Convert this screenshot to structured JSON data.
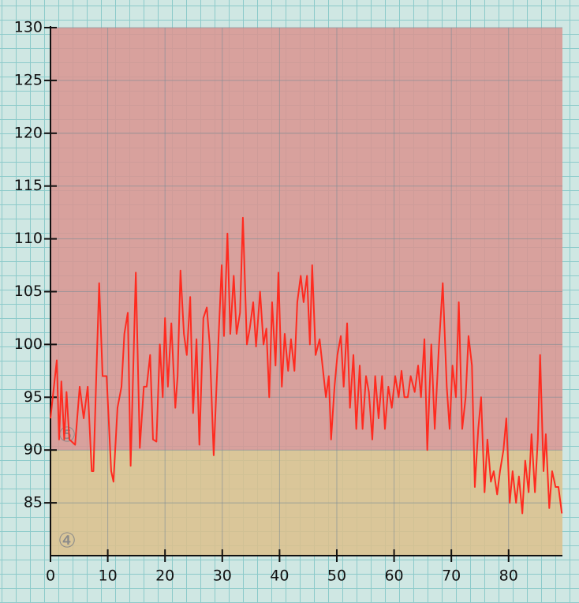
{
  "chart_data": {
    "type": "line",
    "x": [
      0,
      1.1,
      1.5,
      1.9,
      2.4,
      2.8,
      3.3,
      4.3,
      5.1,
      5.8,
      6.5,
      7.2,
      7.5,
      8.0,
      8.5,
      9.1,
      9.8,
      10.6,
      11.0,
      11.7,
      12.4,
      12.9,
      13.5,
      14.0,
      14.9,
      15.6,
      16.3,
      16.8,
      17.4,
      17.9,
      18.5,
      19.1,
      19.6,
      20.0,
      20.5,
      21.1,
      21.8,
      22.2,
      22.7,
      23.3,
      23.8,
      24.4,
      24.9,
      25.5,
      26.0,
      26.7,
      27.3,
      27.8,
      28.5,
      29.3,
      29.9,
      30.3,
      30.9,
      31.4,
      32.0,
      32.5,
      33.1,
      33.6,
      34.3,
      34.8,
      35.4,
      35.9,
      36.6,
      37.2,
      37.7,
      38.2,
      38.7,
      39.3,
      39.8,
      40.4,
      40.9,
      41.5,
      42.0,
      42.6,
      43.1,
      43.7,
      44.2,
      44.8,
      45.3,
      45.7,
      46.3,
      47.0,
      47.5,
      48.1,
      48.6,
      49.0,
      49.6,
      50.1,
      50.7,
      51.2,
      51.8,
      52.3,
      52.9,
      53.4,
      54.0,
      54.5,
      55.1,
      55.6,
      56.2,
      56.7,
      57.3,
      57.9,
      58.4,
      59.0,
      59.6,
      60.2,
      60.8,
      61.3,
      61.8,
      62.4,
      62.9,
      63.6,
      64.2,
      64.7,
      65.3,
      65.8,
      66.5,
      67.1,
      67.8,
      68.5,
      69.2,
      69.7,
      70.2,
      70.8,
      71.3,
      71.9,
      72.5,
      73.0,
      73.6,
      74.1,
      74.7,
      75.2,
      75.8,
      76.3,
      76.9,
      77.4,
      78.0,
      78.5,
      79.1,
      79.6,
      80.2,
      80.7,
      81.3,
      81.8,
      82.4,
      82.9,
      83.5,
      84.0,
      84.6,
      85.1,
      85.5,
      86.1,
      86.5,
      87.1,
      87.6,
      88.2,
      88.7,
      89.3
    ],
    "series": [
      {
        "color": "#ff2a1f",
        "values": [
          93,
          98.5,
          91,
          96.5,
          91,
          95.5,
          91,
          90.5,
          96,
          93,
          96,
          88,
          88,
          97,
          105.8,
          97,
          97,
          88,
          87,
          94,
          96,
          101,
          103,
          88.5,
          106.8,
          90.2,
          96,
          96,
          99,
          91,
          90.8,
          100,
          95,
          102.5,
          96,
          102,
          94,
          97,
          107,
          101,
          99,
          104.5,
          93.5,
          100.5,
          90.5,
          102.5,
          103.5,
          100,
          89.5,
          100,
          107.5,
          100.8,
          110.5,
          101,
          106.5,
          101,
          103,
          112,
          100,
          101.5,
          104,
          99.8,
          105,
          100,
          101.5,
          95,
          104,
          98,
          106.8,
          96,
          101,
          97.5,
          100.5,
          97.5,
          104,
          106.5,
          104,
          106.5,
          100,
          107.5,
          99,
          100.5,
          98,
          95,
          97,
          91,
          96,
          99,
          100.8,
          96,
          102,
          94,
          99,
          92,
          98,
          92,
          97,
          95.5,
          91,
          97,
          93,
          97,
          92,
          96,
          94,
          97,
          95,
          97.5,
          95,
          95,
          97,
          95.5,
          98,
          95,
          100.5,
          90,
          100,
          92,
          99.5,
          105.8,
          96,
          92,
          98,
          95,
          104,
          92,
          95,
          100.8,
          98,
          86.5,
          92,
          95,
          86,
          91,
          87,
          88,
          85.8,
          88,
          90,
          93,
          85,
          88,
          85,
          87.5,
          84,
          89,
          86,
          91.5,
          86,
          91,
          99,
          88,
          91.5,
          84.5,
          88,
          86.5,
          86.5,
          84
        ]
      }
    ],
    "zones": [
      {
        "label": "④",
        "from": 80,
        "to": 90,
        "color": "#dcbf8c"
      },
      {
        "label": "⑤",
        "from": 90,
        "to": 130,
        "color": "#d99490"
      }
    ],
    "xlim": [
      0,
      89.4
    ],
    "ylim": [
      80,
      130
    ],
    "xticks": [
      0,
      10,
      20,
      30,
      40,
      50,
      60,
      70,
      80
    ],
    "yticks": [
      85,
      90,
      95,
      100,
      105,
      110,
      115,
      120,
      125,
      130
    ],
    "grid": true
  }
}
